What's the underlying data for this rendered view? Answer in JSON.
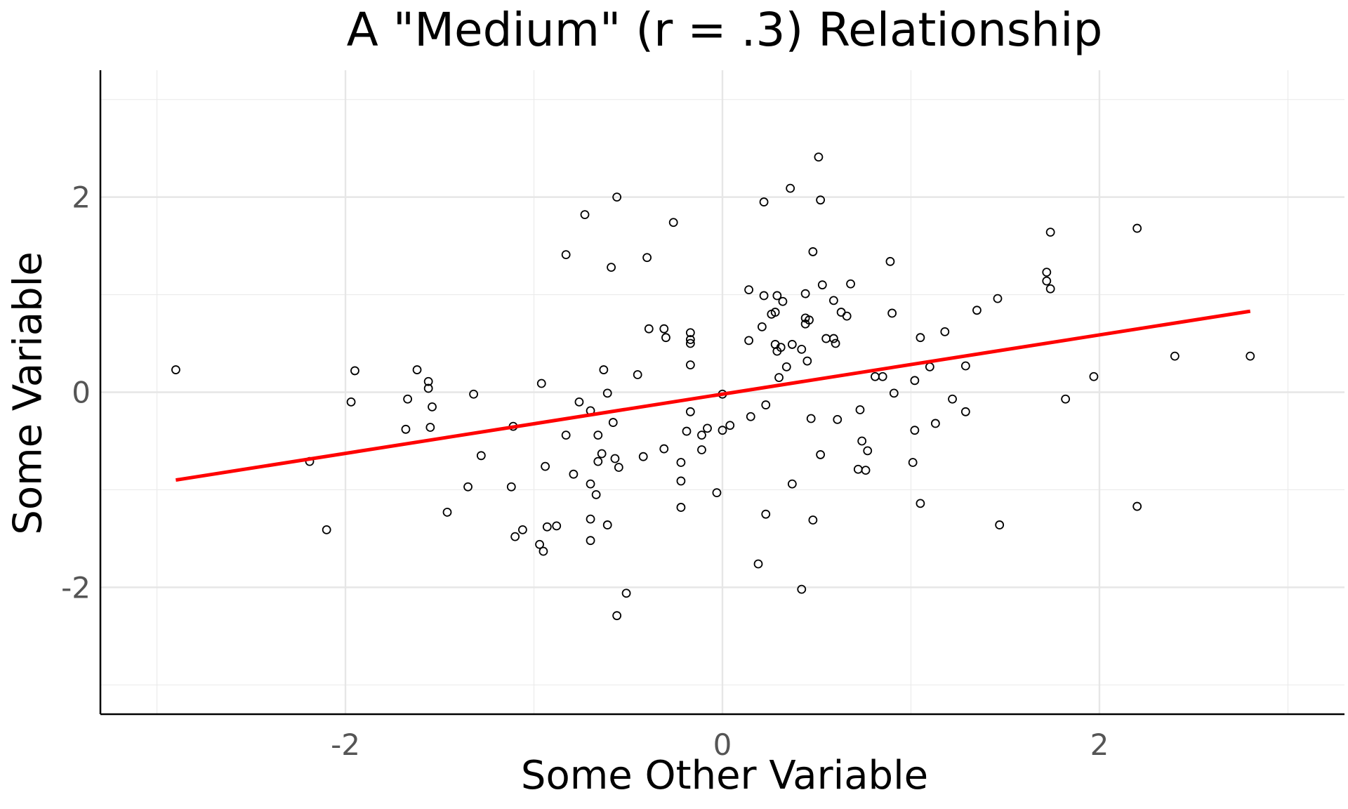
{
  "chart_data": {
    "type": "scatter",
    "title": "A \"Medium\" (r = .3) Relationship",
    "xlabel": "Some Other Variable",
    "ylabel": "Some Variable",
    "xlim": [
      -3.3,
      3.3
    ],
    "ylim": [
      -3.3,
      3.3
    ],
    "x_ticks": [
      -2,
      0,
      2
    ],
    "y_ticks": [
      -2,
      0,
      2
    ],
    "x_tick_labels": [
      "-2",
      "0",
      "2"
    ],
    "y_tick_labels": [
      "-2",
      "0",
      "2"
    ],
    "grid": true,
    "legend": "none",
    "point_style": "open-circle",
    "point_color": "#000000",
    "fit_line": {
      "x": [
        -2.9,
        2.8
      ],
      "y": [
        -0.9,
        0.83
      ],
      "color": "#ff0000"
    },
    "points": [
      [
        -2.9,
        0.23
      ],
      [
        -2.19,
        -0.71
      ],
      [
        -2.1,
        -1.41
      ],
      [
        -1.97,
        -0.1
      ],
      [
        -1.95,
        0.22
      ],
      [
        -1.68,
        -0.38
      ],
      [
        -1.67,
        -0.07
      ],
      [
        -1.62,
        0.23
      ],
      [
        -1.56,
        0.11
      ],
      [
        -1.56,
        0.04
      ],
      [
        -1.54,
        -0.15
      ],
      [
        -1.55,
        -0.36
      ],
      [
        -1.46,
        -1.23
      ],
      [
        -1.35,
        -0.97
      ],
      [
        -1.32,
        -0.02
      ],
      [
        -1.28,
        -0.65
      ],
      [
        -1.12,
        -0.97
      ],
      [
        -1.11,
        -0.35
      ],
      [
        -1.1,
        -1.48
      ],
      [
        -1.06,
        -1.41
      ],
      [
        -0.97,
        -1.56
      ],
      [
        -0.96,
        0.09
      ],
      [
        -0.95,
        -1.63
      ],
      [
        -0.94,
        -0.76
      ],
      [
        -0.93,
        -1.38
      ],
      [
        -0.88,
        -1.37
      ],
      [
        -0.83,
        1.41
      ],
      [
        -0.83,
        -0.44
      ],
      [
        -0.79,
        -0.84
      ],
      [
        -0.76,
        -0.1
      ],
      [
        -0.73,
        1.82
      ],
      [
        -0.7,
        -0.19
      ],
      [
        -0.7,
        -0.94
      ],
      [
        -0.7,
        -1.3
      ],
      [
        -0.7,
        -1.52
      ],
      [
        -0.67,
        -1.05
      ],
      [
        -0.66,
        -0.71
      ],
      [
        -0.66,
        -0.44
      ],
      [
        -0.64,
        -0.63
      ],
      [
        -0.63,
        0.23
      ],
      [
        -0.61,
        -0.01
      ],
      [
        -0.61,
        -1.36
      ],
      [
        -0.59,
        1.28
      ],
      [
        -0.58,
        -0.31
      ],
      [
        -0.57,
        -0.68
      ],
      [
        -0.56,
        2.0
      ],
      [
        -0.56,
        -2.29
      ],
      [
        -0.55,
        -0.77
      ],
      [
        -0.51,
        -2.06
      ],
      [
        -0.45,
        0.18
      ],
      [
        -0.42,
        -0.66
      ],
      [
        -0.4,
        1.38
      ],
      [
        -0.39,
        0.65
      ],
      [
        -0.31,
        0.65
      ],
      [
        -0.31,
        -0.58
      ],
      [
        -0.3,
        0.56
      ],
      [
        -0.26,
        1.74
      ],
      [
        -0.22,
        -1.18
      ],
      [
        -0.22,
        -0.72
      ],
      [
        -0.22,
        -0.91
      ],
      [
        -0.19,
        -0.4
      ],
      [
        -0.17,
        0.61
      ],
      [
        -0.17,
        0.54
      ],
      [
        -0.17,
        0.5
      ],
      [
        -0.17,
        0.28
      ],
      [
        -0.17,
        -0.2
      ],
      [
        -0.11,
        -0.59
      ],
      [
        -0.11,
        -0.44
      ],
      [
        -0.08,
        -0.37
      ],
      [
        -0.03,
        -1.03
      ],
      [
        0.0,
        -0.02
      ],
      [
        0.0,
        -0.39
      ],
      [
        0.04,
        -0.34
      ],
      [
        0.14,
        1.05
      ],
      [
        0.14,
        0.53
      ],
      [
        0.15,
        -0.25
      ],
      [
        0.19,
        -1.76
      ],
      [
        0.21,
        0.67
      ],
      [
        0.22,
        1.95
      ],
      [
        0.22,
        0.99
      ],
      [
        0.23,
        -0.13
      ],
      [
        0.23,
        -1.25
      ],
      [
        0.26,
        0.8
      ],
      [
        0.28,
        0.82
      ],
      [
        0.28,
        0.49
      ],
      [
        0.29,
        0.42
      ],
      [
        0.29,
        0.99
      ],
      [
        0.3,
        0.15
      ],
      [
        0.31,
        0.46
      ],
      [
        0.32,
        0.93
      ],
      [
        0.34,
        0.26
      ],
      [
        0.36,
        2.09
      ],
      [
        0.37,
        0.49
      ],
      [
        0.37,
        -0.94
      ],
      [
        0.42,
        0.44
      ],
      [
        0.42,
        -2.02
      ],
      [
        0.44,
        1.01
      ],
      [
        0.44,
        0.76
      ],
      [
        0.44,
        0.7
      ],
      [
        0.45,
        0.32
      ],
      [
        0.46,
        0.74
      ],
      [
        0.47,
        -0.27
      ],
      [
        0.48,
        1.44
      ],
      [
        0.48,
        -1.31
      ],
      [
        0.51,
        2.41
      ],
      [
        0.52,
        1.97
      ],
      [
        0.52,
        -0.64
      ],
      [
        0.53,
        1.1
      ],
      [
        0.55,
        0.55
      ],
      [
        0.59,
        0.94
      ],
      [
        0.59,
        0.55
      ],
      [
        0.6,
        0.5
      ],
      [
        0.61,
        -0.28
      ],
      [
        0.63,
        0.82
      ],
      [
        0.66,
        0.78
      ],
      [
        0.68,
        1.11
      ],
      [
        0.72,
        -0.79
      ],
      [
        0.73,
        -0.18
      ],
      [
        0.74,
        -0.5
      ],
      [
        0.76,
        -0.8
      ],
      [
        0.77,
        -0.6
      ],
      [
        0.81,
        0.16
      ],
      [
        0.85,
        0.16
      ],
      [
        0.89,
        1.34
      ],
      [
        0.9,
        0.81
      ],
      [
        0.91,
        -0.01
      ],
      [
        1.01,
        -0.72
      ],
      [
        1.02,
        0.12
      ],
      [
        1.02,
        -0.39
      ],
      [
        1.05,
        0.56
      ],
      [
        1.05,
        -1.14
      ],
      [
        1.1,
        0.26
      ],
      [
        1.13,
        -0.32
      ],
      [
        1.18,
        0.62
      ],
      [
        1.22,
        -0.07
      ],
      [
        1.29,
        0.27
      ],
      [
        1.29,
        -0.2
      ],
      [
        1.35,
        0.84
      ],
      [
        1.46,
        0.96
      ],
      [
        1.47,
        -1.36
      ],
      [
        1.72,
        1.23
      ],
      [
        1.72,
        1.14
      ],
      [
        1.74,
        1.64
      ],
      [
        1.74,
        1.06
      ],
      [
        1.82,
        -0.07
      ],
      [
        1.97,
        0.16
      ],
      [
        2.2,
        1.68
      ],
      [
        2.2,
        -1.17
      ],
      [
        2.4,
        0.37
      ],
      [
        2.8,
        0.37
      ]
    ]
  }
}
